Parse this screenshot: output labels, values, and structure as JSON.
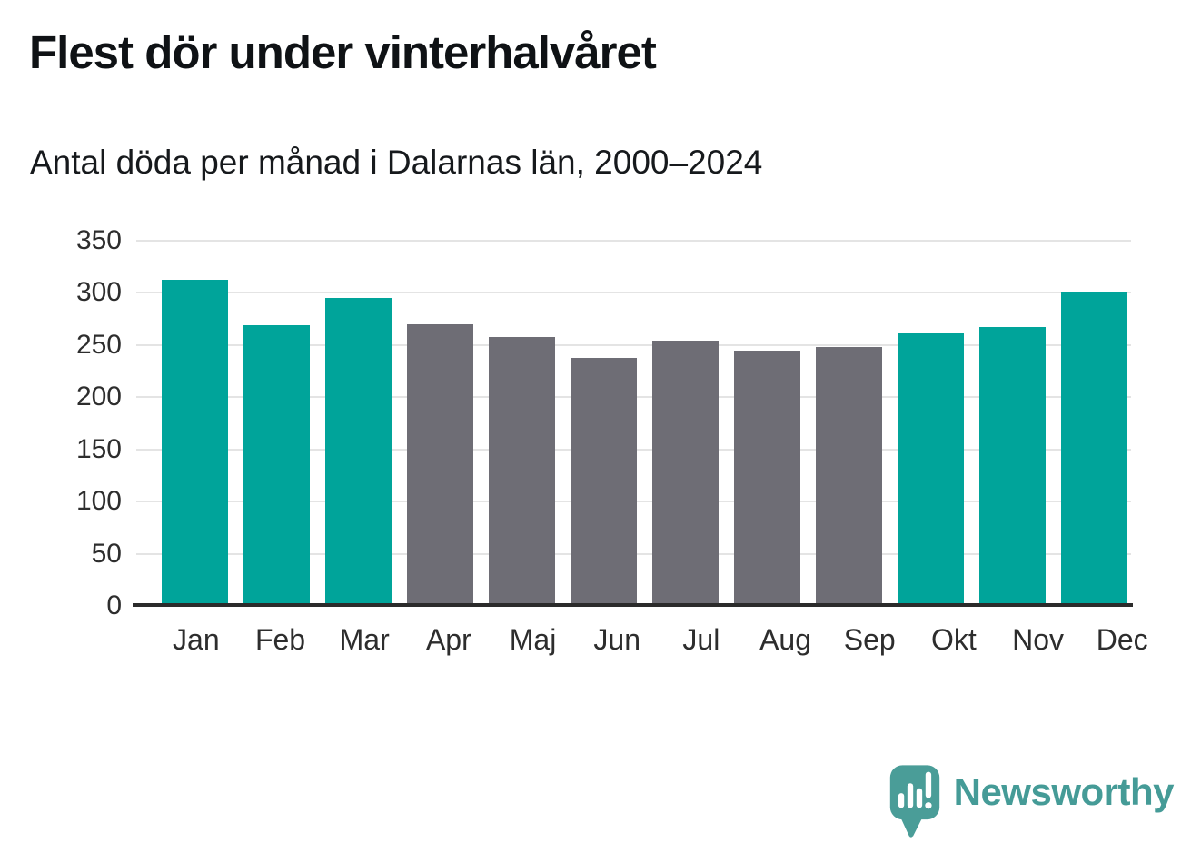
{
  "chart_data": {
    "type": "bar",
    "title": "Flest dör under vinterhalvåret",
    "subtitle": "Antal döda per månad i Dalarnas län, 2000–2024",
    "categories": [
      "Jan",
      "Feb",
      "Mar",
      "Apr",
      "Maj",
      "Jun",
      "Jul",
      "Aug",
      "Sep",
      "Okt",
      "Nov",
      "Dec"
    ],
    "values": [
      313,
      269,
      295,
      270,
      258,
      238,
      254,
      245,
      248,
      261,
      267,
      301
    ],
    "xlabel": "",
    "ylabel": "",
    "ylim": [
      0,
      350
    ],
    "yticks": [
      0,
      50,
      100,
      150,
      200,
      250,
      300,
      350
    ],
    "grid": true,
    "legend": "none",
    "colors": {
      "winter": "#00a49a",
      "summer": "#6e6d75"
    },
    "bar_colors": [
      "winter",
      "winter",
      "winter",
      "summer",
      "summer",
      "summer",
      "summer",
      "summer",
      "summer",
      "winter",
      "winter",
      "winter"
    ]
  },
  "branding": {
    "name": "Newsworthy",
    "wordmark_color": "#459b97",
    "icon": "newsworthy-speech-bubble-bar-chart-icon",
    "icon_color": "#4a9d98"
  }
}
